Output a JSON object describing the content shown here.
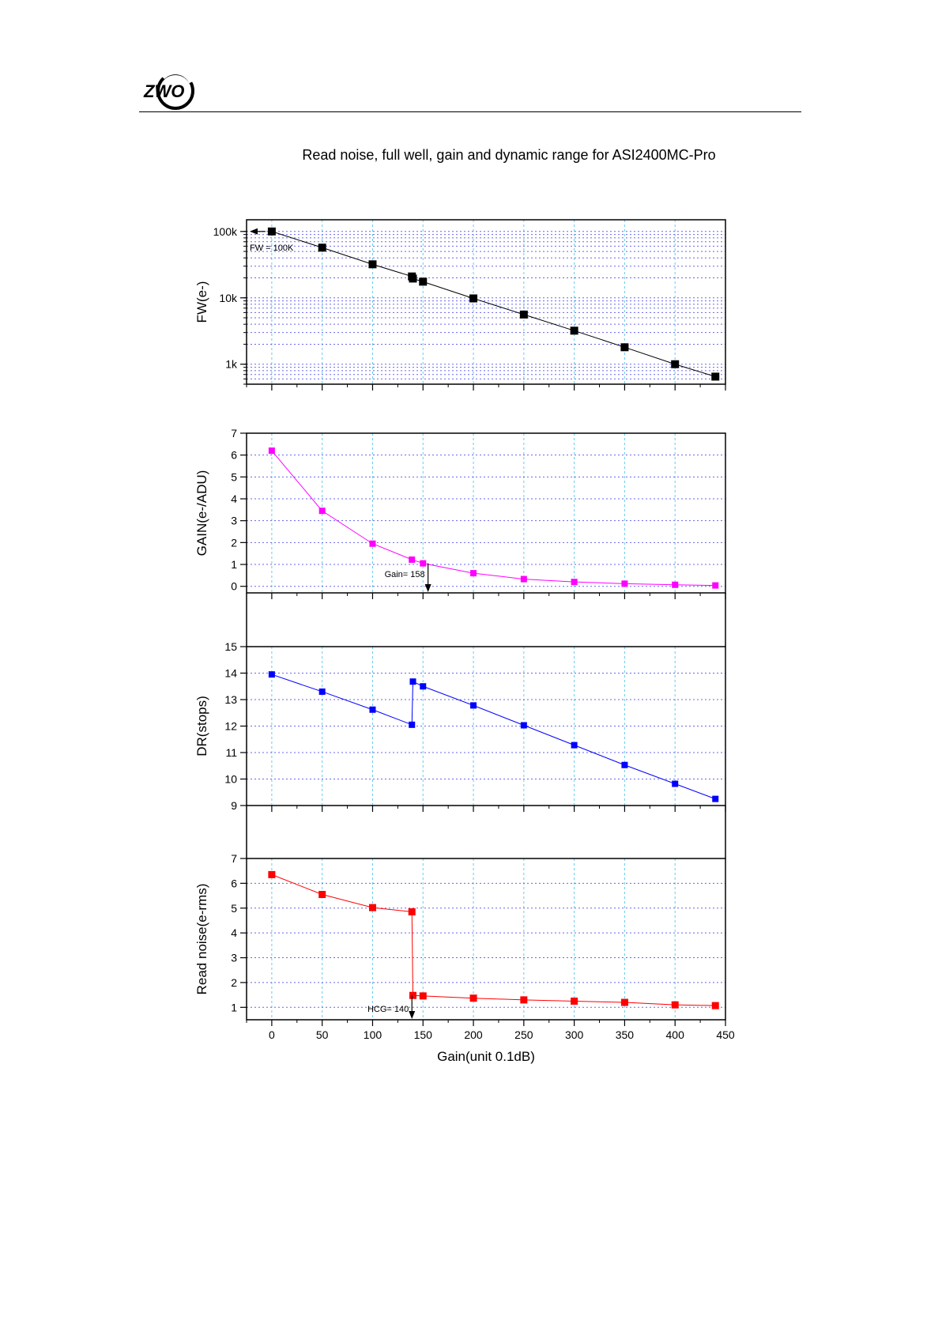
{
  "header": {
    "logo_text": "ZWO"
  },
  "page_title": "Read noise, full well, gain and dynamic range for ASI2400MC-Pro",
  "colors": {
    "fw": "#000000",
    "gain": "#ff00ff",
    "dr": "#0000ff",
    "rn": "#ff0000",
    "grid_x": "#66ccee",
    "grid_y": "#6666ee"
  },
  "chart_data": [
    {
      "type": "line",
      "id": "fw",
      "ylabel": "FW(e-)",
      "xlim": [
        -25,
        450
      ],
      "ylim": [
        500,
        150000
      ],
      "yscale": "log",
      "ytick_labels": [
        "1k",
        "10k",
        "100k"
      ],
      "ytick_values": [
        1000,
        10000,
        100000
      ],
      "x": [
        0,
        50,
        100,
        139,
        140,
        150,
        200,
        250,
        300,
        350,
        400,
        440
      ],
      "values": [
        100000,
        57000,
        32000,
        21000,
        19500,
        17500,
        9800,
        5600,
        3200,
        1800,
        1000,
        650
      ],
      "annotation": {
        "text": "FW = 100K",
        "x": 0,
        "y": 100000
      }
    },
    {
      "type": "line",
      "id": "gain",
      "ylabel": "GAIN(e-/ADU)",
      "xlim": [
        -25,
        450
      ],
      "ylim": [
        -0.3,
        7
      ],
      "ytick_values": [
        0,
        1,
        2,
        3,
        4,
        5,
        6,
        7
      ],
      "x": [
        0,
        50,
        100,
        139,
        150,
        200,
        250,
        300,
        350,
        400,
        440
      ],
      "values": [
        6.2,
        3.45,
        1.95,
        1.22,
        1.05,
        0.6,
        0.33,
        0.2,
        0.12,
        0.07,
        0.04
      ],
      "annotation": {
        "text": "Gain= 158",
        "x": 155,
        "y": 0
      }
    },
    {
      "type": "line",
      "id": "dr",
      "ylabel": "DR(stops)",
      "xlim": [
        -25,
        450
      ],
      "ylim": [
        9,
        15
      ],
      "ytick_values": [
        9,
        10,
        11,
        12,
        13,
        14,
        15
      ],
      "x": [
        0,
        50,
        100,
        139,
        140,
        150,
        200,
        250,
        300,
        350,
        400,
        440
      ],
      "values": [
        13.95,
        13.3,
        12.62,
        12.05,
        13.68,
        13.5,
        12.78,
        12.03,
        11.28,
        10.53,
        9.82,
        9.25
      ]
    },
    {
      "type": "line",
      "id": "rn",
      "ylabel": "Read noise(e-rms)",
      "xlabel": "Gain(unit 0.1dB)",
      "xlim": [
        -25,
        450
      ],
      "ylim": [
        0.5,
        7
      ],
      "ytick_values": [
        1,
        2,
        3,
        4,
        5,
        6,
        7
      ],
      "xtick_values": [
        0,
        50,
        100,
        150,
        200,
        250,
        300,
        350,
        400,
        450
      ],
      "x": [
        0,
        50,
        100,
        139,
        140,
        150,
        200,
        250,
        300,
        350,
        400,
        440
      ],
      "values": [
        6.35,
        5.55,
        5.02,
        4.85,
        1.48,
        1.46,
        1.37,
        1.3,
        1.25,
        1.2,
        1.1,
        1.07
      ],
      "annotation": {
        "text": "HCG= 140",
        "x": 139,
        "y": 1
      }
    }
  ]
}
